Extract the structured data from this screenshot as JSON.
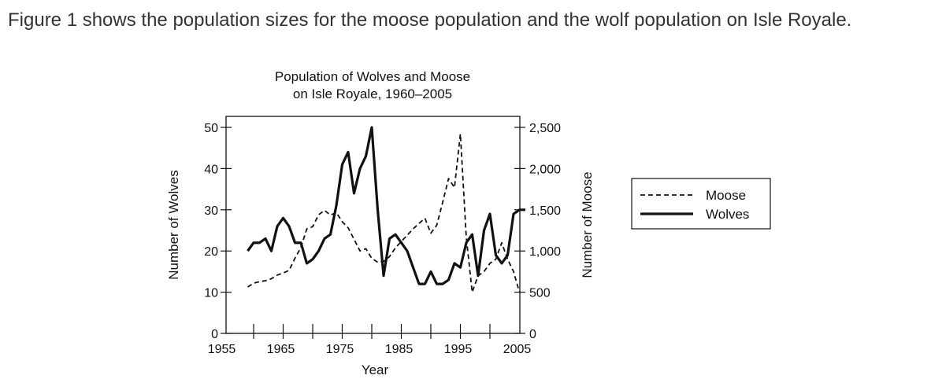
{
  "intro_text": "Figure 1 shows the population sizes for the moose population and the wolf population on Isle Royale.",
  "chart_data": {
    "type": "line",
    "title_lines": [
      "Population of Wolves and Moose",
      "on Isle Royale, 1960–2005"
    ],
    "xlabel": "Year",
    "ylabel_left": "Number of Wolves",
    "ylabel_right": "Number of Moose",
    "xlim": [
      1955,
      2005
    ],
    "ylim_left": [
      0,
      50
    ],
    "ylim_right": [
      0,
      2500
    ],
    "x_ticks": [
      "1955",
      "1965",
      "1975",
      "1985",
      "1995",
      "2005"
    ],
    "y_left_ticks": [
      "0",
      "10",
      "20",
      "30",
      "40",
      "50"
    ],
    "y_right_ticks": [
      "0",
      "500",
      "1,000",
      "1,500",
      "2,000",
      "2,500"
    ],
    "legend_placement": "right",
    "series": [
      {
        "name": "Moose",
        "axis": "right",
        "style": "dashed",
        "x": [
          1959,
          1960,
          1961,
          1962,
          1963,
          1964,
          1965,
          1966,
          1967,
          1968,
          1969,
          1970,
          1971,
          1972,
          1973,
          1974,
          1975,
          1976,
          1977,
          1978,
          1979,
          1980,
          1981,
          1982,
          1983,
          1984,
          1985,
          1986,
          1987,
          1988,
          1989,
          1990,
          1991,
          1992,
          1993,
          1994,
          1995,
          1996,
          1997,
          1998,
          1999,
          2000,
          2001,
          2002,
          2003,
          2004,
          2005
        ],
        "values": [
          563,
          610,
          628,
          639,
          663,
          707,
          733,
          765,
          912,
          1042,
          1268,
          1295,
          1439,
          1493,
          1435,
          1467,
          1355,
          1282,
          1143,
          1001,
          1028,
          910,
          863,
          872,
          932,
          1038,
          1115,
          1192,
          1268,
          1335,
          1397,
          1216,
          1313,
          1590,
          1879,
          1770,
          2422,
          1163,
          500,
          699,
          750,
          850,
          900,
          1100,
          900,
          750,
          500
        ]
      },
      {
        "name": "Wolves",
        "axis": "left",
        "style": "solid",
        "x": [
          1959,
          1960,
          1961,
          1962,
          1963,
          1964,
          1965,
          1966,
          1967,
          1968,
          1969,
          1970,
          1971,
          1972,
          1973,
          1974,
          1975,
          1976,
          1977,
          1978,
          1979,
          1980,
          1981,
          1982,
          1983,
          1984,
          1985,
          1986,
          1987,
          1988,
          1989,
          1990,
          1991,
          1992,
          1993,
          1994,
          1995,
          1996,
          1997,
          1998,
          1999,
          2000,
          2001,
          2002,
          2003,
          2004,
          2005,
          2006
        ],
        "values": [
          20,
          22,
          22,
          23,
          20,
          26,
          28,
          26,
          22,
          22,
          17,
          18,
          20,
          23,
          24,
          31,
          41,
          44,
          34,
          40,
          43,
          50,
          30,
          14,
          23,
          24,
          22,
          20,
          16,
          12,
          12,
          15,
          12,
          12,
          13,
          17,
          16,
          22,
          24,
          14,
          25,
          29,
          19,
          17,
          19,
          29,
          30,
          30
        ]
      }
    ]
  }
}
